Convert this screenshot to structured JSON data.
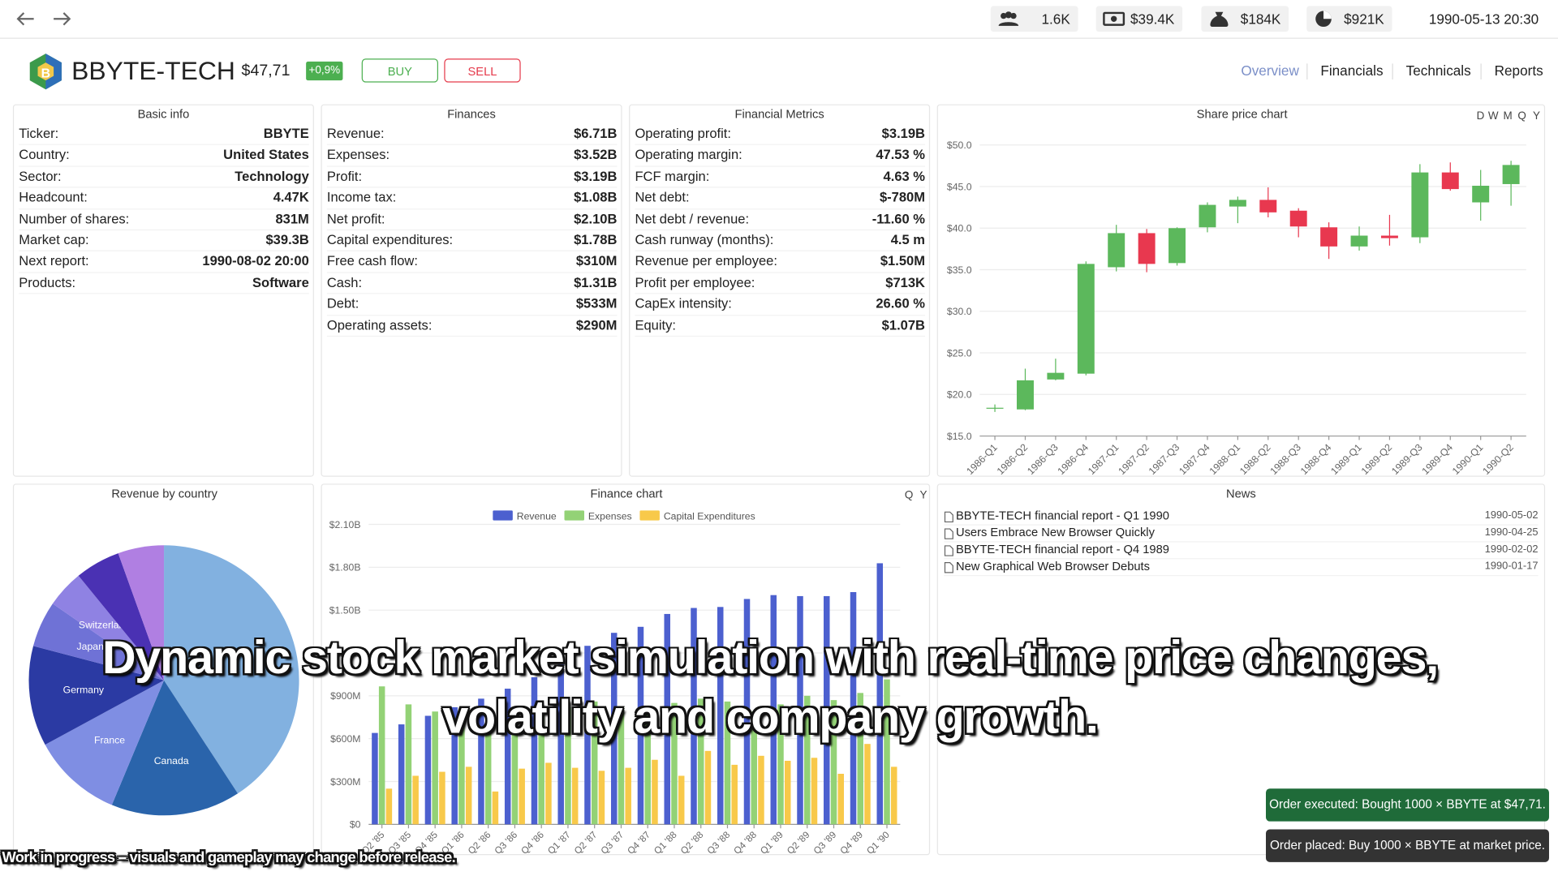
{
  "topbar": {
    "stats": [
      "1.6K",
      "$39.4K",
      "$184K",
      "$921K"
    ],
    "datetime": "1990-05-13 20:30"
  },
  "header": {
    "company": "BBYTE-TECH",
    "price": "$47,71",
    "change": "+0,9%",
    "buy": "BUY",
    "sell": "SELL",
    "nav": [
      "Overview",
      "Financials",
      "Technicals",
      "Reports"
    ]
  },
  "basic_info": {
    "title": "Basic info",
    "rows": [
      [
        "Ticker:",
        "BBYTE"
      ],
      [
        "Country:",
        "United States"
      ],
      [
        "Sector:",
        "Technology"
      ],
      [
        "Headcount:",
        "4.47K"
      ],
      [
        "Number of shares:",
        "831M"
      ],
      [
        "Market cap:",
        "$39.3B"
      ],
      [
        "Next report:",
        "1990-08-02 20:00"
      ],
      [
        "Products:",
        "Software"
      ]
    ]
  },
  "finances": {
    "title": "Finances",
    "rows": [
      [
        "Revenue:",
        "$6.71B"
      ],
      [
        "Expenses:",
        "$3.52B"
      ],
      [
        "Profit:",
        "$3.19B"
      ],
      [
        "Income tax:",
        "$1.08B"
      ],
      [
        "Net profit:",
        "$2.10B"
      ],
      [
        "Capital expenditures:",
        "$1.78B"
      ],
      [
        "Free cash flow:",
        "$310M"
      ],
      [
        "Cash:",
        "$1.31B"
      ],
      [
        "Debt:",
        "$533M"
      ],
      [
        "Operating assets:",
        "$290M"
      ]
    ]
  },
  "financial_metrics": {
    "title": "Financial Metrics",
    "rows": [
      [
        "Operating profit:",
        "$3.19B"
      ],
      [
        "Operating margin:",
        "47.53 %"
      ],
      [
        "FCF margin:",
        "4.63 %"
      ],
      [
        "Net debt:",
        "$-780M"
      ],
      [
        "Net debt / revenue:",
        "-11.60 %"
      ],
      [
        "Cash runway (months):",
        "4.5 m"
      ],
      [
        "Revenue per employee:",
        "$1.50M"
      ],
      [
        "Profit per employee:",
        "$713K"
      ],
      [
        "CapEx intensity:",
        "26.60 %"
      ],
      [
        "Equity:",
        "$1.07B"
      ]
    ]
  },
  "chart_data": [
    {
      "type": "candlestick",
      "title": "Share price chart",
      "periods": [
        "D",
        "W",
        "M",
        "Q",
        "Y"
      ],
      "categories": [
        "1986-Q1",
        "1986-Q2",
        "1986-Q3",
        "1986-Q4",
        "1987-Q1",
        "1987-Q2",
        "1987-Q3",
        "1987-Q4",
        "1988-Q1",
        "1988-Q2",
        "1988-Q3",
        "1988-Q4",
        "1989-Q1",
        "1989-Q2",
        "1989-Q3",
        "1989-Q4",
        "1990-Q1",
        "1990-Q2"
      ],
      "open": [
        18.3,
        18.2,
        21.8,
        22.5,
        35.3,
        39.4,
        35.8,
        40.1,
        42.6,
        43.4,
        42.1,
        40.1,
        37.8,
        39.1,
        38.9,
        46.7,
        43.1,
        45.3
      ],
      "high": [
        18.8,
        23.1,
        24.3,
        36.0,
        40.4,
        39.9,
        40.1,
        43.1,
        43.8,
        44.9,
        42.4,
        40.7,
        40.2,
        41.6,
        47.7,
        47.9,
        47.0,
        48.1
      ],
      "low": [
        17.9,
        18.1,
        21.7,
        22.3,
        34.8,
        34.7,
        35.5,
        39.5,
        40.6,
        41.3,
        38.9,
        36.3,
        37.3,
        37.9,
        38.2,
        44.5,
        40.9,
        42.7
      ],
      "close": [
        18.4,
        21.7,
        22.6,
        35.7,
        39.4,
        35.7,
        40.0,
        42.8,
        43.4,
        41.9,
        40.2,
        37.8,
        39.1,
        38.8,
        46.7,
        44.7,
        45.1,
        47.6
      ],
      "up_color": "#5cb85c",
      "down_color": "#e8384f",
      "grid": true,
      "ylim": [
        15,
        50
      ],
      "yticks": [
        {
          "value": 15,
          "label": "$15.0"
        },
        {
          "value": 20,
          "label": "$20.0"
        },
        {
          "value": 25,
          "label": "$25.0"
        },
        {
          "value": 30,
          "label": "$30.0"
        },
        {
          "value": 35,
          "label": "$35.0"
        },
        {
          "value": 40,
          "label": "$40.0"
        },
        {
          "value": 45,
          "label": "$45.0"
        },
        {
          "value": 50,
          "label": "$50.0"
        }
      ]
    },
    {
      "type": "bar",
      "title": "Finance chart",
      "periods": [
        "Q",
        "Y"
      ],
      "grid": true,
      "categories": [
        "Q2 '85",
        "Q3 '85",
        "Q4 '85",
        "Q1 '86",
        "Q2 '86",
        "Q3 '86",
        "Q4 '86",
        "Q1 '87",
        "Q2 '87",
        "Q3 '87",
        "Q4 '87",
        "Q1 '88",
        "Q2 '88",
        "Q3 '88",
        "Q4 '88",
        "Q1 '89",
        "Q2 '89",
        "Q3 '89",
        "Q4 '89",
        "Q1 '90"
      ],
      "series": [
        {
          "name": "Revenue",
          "color": "#4c60cf",
          "values": [
            640,
            700,
            760,
            820,
            880,
            950,
            1030,
            1120,
            1250,
            1341,
            1383,
            1473,
            1515,
            1522,
            1578,
            1605,
            1598,
            1598,
            1626,
            1828
          ]
        },
        {
          "name": "Expenses",
          "color": "#93d276",
          "values": [
            966,
            840,
            790,
            720,
            760,
            800,
            780,
            820,
            860,
            820,
            790,
            850,
            880,
            860,
            790,
            840,
            900,
            870,
            920,
            1015
          ]
        },
        {
          "name": "Capital Expenditures",
          "color": "#f8c94a",
          "values": [
            250,
            340,
            368,
            403,
            230,
            390,
            431,
            396,
            375,
            396,
            452,
            340,
            514,
            417,
            480,
            445,
            466,
            354,
            563,
            403
          ]
        }
      ],
      "ylim": [
        0,
        2100
      ],
      "yticks": [
        {
          "value": 0,
          "label": "$0"
        },
        {
          "value": 300,
          "label": "$300M"
        },
        {
          "value": 600,
          "label": "$600M"
        },
        {
          "value": 900,
          "label": "$900M"
        },
        {
          "value": 1200,
          "label": "$1.20B"
        },
        {
          "value": 1500,
          "label": "$1.50B"
        },
        {
          "value": 1800,
          "label": "$1.80B"
        },
        {
          "value": 2100,
          "label": "$2.10B"
        }
      ]
    },
    {
      "type": "pie",
      "title": "Revenue by country",
      "categories": [
        null,
        "Canada",
        "France",
        "Germany",
        "Japan",
        "Switzerland",
        null,
        null
      ],
      "values": [
        40.8,
        15.5,
        10.8,
        12.0,
        5.5,
        4.5,
        5.4,
        5.5
      ],
      "colors": [
        "#82b1e0",
        "#2a64ab",
        "#7f8ee3",
        "#2b3aa3",
        "#6f72d6",
        "#8f82e3",
        "#4a31b3",
        "#b07fe2"
      ]
    }
  ],
  "news": {
    "title": "News",
    "items": [
      {
        "title": "BBYTE-TECH financial report - Q1 1990",
        "date": "1990-05-02"
      },
      {
        "title": "Users Embrace New Browser Quickly",
        "date": "1990-04-25"
      },
      {
        "title": "BBYTE-TECH financial report - Q4 1989",
        "date": "1990-02-02"
      },
      {
        "title": "New Graphical Web Browser Debuts",
        "date": "1990-01-17"
      }
    ]
  },
  "toasts": [
    "Order executed: Bought 1000 × BBYTE at $47,71.",
    "Order placed: Buy 1000 × BBYTE at market price."
  ],
  "overlay_caption": "Dynamic stock market simulation with real-time price changes, volatility and company growth.",
  "footer_note": "Work in progress – visuals and gameplay may change before release."
}
